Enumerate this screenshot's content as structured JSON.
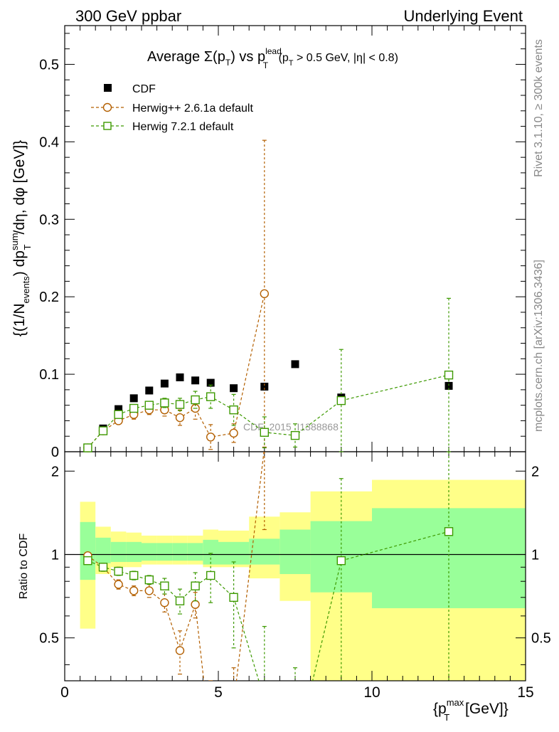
{
  "header": {
    "left": "300 GeV ppbar",
    "right": "Underlying Event",
    "title_prefix": "Average ",
    "title_sigma": "Σ(p",
    "title_T1": "T",
    "title_vs": ") vs p",
    "title_lead": "lead",
    "title_T2": "T",
    "title_cut": " (p",
    "title_T3": "T",
    "title_rest": " > 0.5 GeV, |η| < 0.8)"
  },
  "side_labels": {
    "rivet": "Rivet 3.1.10, ≥ 300k events",
    "mcplots": "mcplots.cern.ch [arXiv:1306.3436]"
  },
  "watermark": "CDF_2015_I1388868",
  "axes": {
    "top_ylabel": "{(1/N_events) dp_T^sum/dη, dφ [GeV]}",
    "top_ylabel_parts": {
      "a": "{(1/N",
      "b": "events",
      "c": ") dp",
      "d": "sum",
      "e": "T",
      "f": "/dη, dφ [GeV]}"
    },
    "bottom_ylabel": "Ratio to CDF",
    "xlabel_parts": {
      "a": "{p",
      "b": "max",
      "c": "T",
      "d": " [GeV]}"
    }
  },
  "colors": {
    "cdf": "#000000",
    "herwigpp": "#b35f00",
    "herwig7": "#3d9900",
    "band_outer": "#ffff88",
    "band_inner": "#99ff99"
  },
  "chart_data": {
    "type": "scatter",
    "title": "Average Σ(pT) vs pT^lead (pT > 0.5 GeV, |η| < 0.8)",
    "xlabel": "{pT^max [GeV]}",
    "xlim": [
      0,
      15
    ],
    "top_panel": {
      "ylabel": "{(1/N_events) dp_T^sum/dη, dφ [GeV]}",
      "ylim": [
        0,
        0.55
      ],
      "yticks": [
        0,
        0.1,
        0.2,
        0.3,
        0.4,
        0.5
      ],
      "yticklabels": [
        "0",
        "0.1",
        "0.2",
        "0.3",
        "0.4",
        "0.5"
      ]
    },
    "bottom_panel": {
      "ylabel": "Ratio to CDF",
      "ylim": [
        0.35,
        2.35
      ],
      "yticks": [
        0.5,
        1,
        2
      ],
      "yticklabels": [
        "0.5",
        "1",
        "2"
      ]
    },
    "xticks": [
      0,
      5,
      10,
      15
    ],
    "xticklabels": [
      "0",
      "5",
      "10",
      "15"
    ],
    "legend": [
      "CDF",
      "Herwig++ 2.6.1a default",
      "Herwig 7.2.1 default"
    ],
    "series": [
      {
        "name": "CDF",
        "marker": "filled-square",
        "x": [
          0.75,
          1.25,
          1.75,
          2.25,
          2.75,
          3.25,
          3.75,
          4.25,
          4.75,
          5.5,
          6.5,
          7.5,
          9.0,
          12.5
        ],
        "y": [
          0.005,
          0.03,
          0.055,
          0.069,
          0.079,
          0.088,
          0.096,
          0.092,
          0.089,
          0.082,
          0.084,
          0.113,
          0.07,
          0.085
        ]
      },
      {
        "name": "Herwig++ 2.6.1a default",
        "marker": "open-circle",
        "x": [
          0.75,
          1.25,
          1.75,
          2.25,
          2.75,
          3.25,
          3.75,
          4.25,
          4.75,
          5.5,
          6.5
        ],
        "y": [
          0.005,
          0.027,
          0.04,
          0.048,
          0.054,
          0.054,
          0.044,
          0.056,
          0.019,
          0.024,
          0.204
        ],
        "yerr": [
          0.001,
          0.003,
          0.004,
          0.006,
          0.006,
          0.008,
          0.01,
          0.014,
          0.016,
          0.012,
          0.198
        ],
        "ratio": [
          0.99,
          0.9,
          0.78,
          0.74,
          0.74,
          0.67,
          0.45,
          0.66,
          0.21,
          0.29,
          2.43
        ],
        "ratio_err": [
          0.02,
          0.03,
          0.03,
          0.03,
          0.04,
          0.05,
          0.08,
          0.07,
          0.12,
          0.1,
          1.2
        ]
      },
      {
        "name": "Herwig 7.2.1 default",
        "marker": "open-square",
        "x": [
          0.75,
          1.25,
          1.75,
          2.25,
          2.75,
          3.25,
          3.75,
          4.25,
          4.75,
          5.5,
          6.5,
          7.5,
          9.0,
          12.5
        ],
        "y": [
          0.005,
          0.027,
          0.048,
          0.056,
          0.06,
          0.063,
          0.061,
          0.067,
          0.071,
          0.054,
          0.025,
          0.021,
          0.066,
          0.099
        ],
        "yerr": [
          0.001,
          0.003,
          0.004,
          0.004,
          0.005,
          0.006,
          0.008,
          0.011,
          0.015,
          0.02,
          0.02,
          0.015,
          0.066,
          0.099
        ],
        "ratio": [
          0.95,
          0.9,
          0.87,
          0.84,
          0.81,
          0.77,
          0.68,
          0.77,
          0.84,
          0.7,
          0.3,
          0.19,
          0.95,
          1.21
        ],
        "ratio_err": [
          0.02,
          0.03,
          0.03,
          0.03,
          0.03,
          0.05,
          0.07,
          0.09,
          0.17,
          0.24,
          0.25,
          0.2,
          0.93,
          1.2
        ]
      }
    ],
    "cdf_bands": {
      "bin_edges": [
        0.5,
        1.0,
        1.5,
        2.0,
        2.5,
        3.0,
        3.5,
        4.0,
        4.5,
        5.0,
        6.0,
        7.0,
        8.0,
        10.0,
        15.0
      ],
      "outer_low": [
        0.54,
        0.85,
        0.9,
        0.9,
        0.92,
        0.92,
        0.92,
        0.92,
        0.9,
        0.9,
        0.82,
        0.68,
        0.35,
        0.35
      ],
      "outer_high": [
        1.55,
        1.26,
        1.21,
        1.2,
        1.17,
        1.17,
        1.17,
        1.17,
        1.23,
        1.22,
        1.37,
        1.42,
        1.69,
        1.86
      ],
      "inner_low": [
        0.81,
        0.93,
        0.94,
        0.94,
        0.95,
        0.95,
        0.95,
        0.95,
        0.92,
        0.92,
        0.92,
        0.85,
        0.73,
        0.64
      ],
      "inner_high": [
        1.31,
        1.15,
        1.11,
        1.11,
        1.1,
        1.1,
        1.1,
        1.1,
        1.13,
        1.11,
        1.14,
        1.23,
        1.32,
        1.47
      ]
    }
  }
}
